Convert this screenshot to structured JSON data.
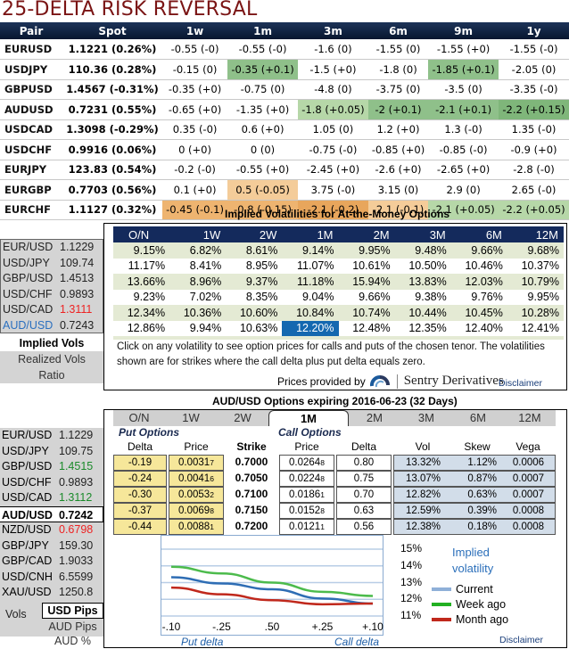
{
  "risk_reversal": {
    "title": "25-DELTA RISK REVERSAL",
    "headers": [
      "Pair",
      "Spot",
      "1w",
      "1m",
      "3m",
      "6m",
      "9m",
      "1y"
    ],
    "rows": [
      {
        "pair": "EURUSD",
        "spot": "1.1221 (0.26%)",
        "cells": [
          "-0.55 (-0)",
          "-0.55 (-0)",
          "-1.6 (0)",
          "-1.55 (0)",
          "-1.55 (+0)",
          "-1.55 (-0)"
        ],
        "shade": [
          "",
          "",
          "",
          "",
          "",
          ""
        ]
      },
      {
        "pair": "USDJPY",
        "spot": "110.36 (0.28%)",
        "cells": [
          "-0.15 (0)",
          "-0.35 (+0.1)",
          "-1.5 (+0)",
          "-1.8 (0)",
          "-1.85 (+0.1)",
          "-2.05 (0)"
        ],
        "shade": [
          "",
          "g2",
          "",
          "",
          "g2",
          ""
        ]
      },
      {
        "pair": "GBPUSD",
        "spot": "1.4567 (-0.31%)",
        "cells": [
          "-0.35 (+0)",
          "-0.75 (0)",
          "-4.8 (0)",
          "-3.75 (0)",
          "-3.5 (0)",
          "-3.35 (-0)"
        ],
        "shade": [
          "",
          "",
          "",
          "",
          "",
          ""
        ]
      },
      {
        "pair": "AUDUSD",
        "spot": "0.7231 (0.55%)",
        "cells": [
          "-0.65 (+0)",
          "-1.35 (+0)",
          "-1.8 (+0.05)",
          "-2 (+0.1)",
          "-2.1 (+0.1)",
          "-2.2 (+0.15)"
        ],
        "shade": [
          "",
          "",
          "g1",
          "g2",
          "g2",
          "g3"
        ]
      },
      {
        "pair": "USDCAD",
        "spot": "1.3098 (-0.29%)",
        "cells": [
          "0.35 (-0)",
          "0.6 (+0)",
          "1.05 (0)",
          "1.2 (+0)",
          "1.3 (-0)",
          "1.35 (-0)"
        ],
        "shade": [
          "",
          "",
          "",
          "",
          "",
          ""
        ]
      },
      {
        "pair": "USDCHF",
        "spot": "0.9916 (0.06%)",
        "cells": [
          "0 (+0)",
          "0 (0)",
          "-0.75 (-0)",
          "-0.85 (+0)",
          "-0.85 (-0)",
          "-0.9 (+0)"
        ],
        "shade": [
          "",
          "",
          "",
          "",
          "",
          ""
        ]
      },
      {
        "pair": "EURJPY",
        "spot": "123.83 (0.54%)",
        "cells": [
          "-0.2 (-0)",
          "-0.55 (+0)",
          "-2.45 (+0)",
          "-2.6 (+0)",
          "-2.65 (+0)",
          "-2.8 (-0)"
        ],
        "shade": [
          "",
          "",
          "",
          "",
          "",
          ""
        ]
      },
      {
        "pair": "EURGBP",
        "spot": "0.7703 (0.56%)",
        "cells": [
          "0.1 (+0)",
          "0.5 (-0.05)",
          "3.75 (-0)",
          "3.15 (0)",
          "2.9 (0)",
          "2.65 (-0)"
        ],
        "shade": [
          "",
          "o1",
          "",
          "",
          "",
          ""
        ]
      },
      {
        "pair": "EURCHF",
        "spot": "1.1127 (0.32%)",
        "cells": [
          "-0.45 (-0.1)",
          "-0.8 (-0.15)",
          "-2.1 (-0.2)",
          "-2.1 (-0.1)",
          "-2.1 (+0.05)",
          "-2.2 (+0.05)"
        ],
        "shade": [
          "o2",
          "o2",
          "o3",
          "o1",
          "g1",
          "g1"
        ]
      }
    ]
  },
  "implied_vols": {
    "title": "Implied Volatilities for At-the-Money Options",
    "side_rates": [
      {
        "pair": "EUR/USD",
        "value": "1.1229",
        "pair_color": "#222222",
        "value_color": "#222222"
      },
      {
        "pair": "USD/JPY",
        "value": "109.74",
        "pair_color": "#222222",
        "value_color": "#222222"
      },
      {
        "pair": "GBP/USD",
        "value": "1.4513",
        "pair_color": "#222222",
        "value_color": "#222222"
      },
      {
        "pair": "USD/CHF",
        "value": "0.9893",
        "pair_color": "#222222",
        "value_color": "#222222"
      },
      {
        "pair": "USD/CAD",
        "value": "1.3111",
        "pair_color": "#222222",
        "value_color": "#ee2222"
      },
      {
        "pair": "AUD/USD",
        "value": "0.7243",
        "pair_color": "#2a6fbf",
        "value_color": "#222222"
      }
    ],
    "view_options": [
      "Implied Vols",
      "Realized Vols",
      "Ratio"
    ],
    "selected_view": "Implied Vols",
    "headers": [
      "O/N",
      "1W",
      "2W",
      "1M",
      "2M",
      "3M",
      "6M",
      "12M"
    ],
    "rows": [
      [
        "9.15%",
        "6.82%",
        "8.61%",
        "9.14%",
        "9.95%",
        "9.48%",
        "9.66%",
        "9.68%"
      ],
      [
        "11.17%",
        "8.41%",
        "8.95%",
        "11.07%",
        "10.61%",
        "10.50%",
        "10.46%",
        "10.37%"
      ],
      [
        "13.66%",
        "8.96%",
        "9.37%",
        "11.18%",
        "15.94%",
        "13.83%",
        "12.03%",
        "10.79%"
      ],
      [
        "9.23%",
        "7.02%",
        "8.35%",
        "9.04%",
        "9.66%",
        "9.38%",
        "9.76%",
        "9.95%"
      ],
      [
        "12.34%",
        "10.36%",
        "10.60%",
        "10.84%",
        "10.74%",
        "10.44%",
        "10.45%",
        "10.28%"
      ],
      [
        "12.86%",
        "9.94%",
        "10.63%",
        "12.20%",
        "12.48%",
        "12.35%",
        "12.40%",
        "12.41%"
      ]
    ],
    "selected_cell": {
      "row": 5,
      "col": 3
    },
    "note": "Click on any volatility to see option prices for calls and puts of the chosen tenor. The volatilities shown are for strikes where the call delta plus put delta equals zero.",
    "provided_by": "Prices provided by",
    "provider_name": "Sentry Derivatives",
    "disclaimer": "Disclaimer"
  },
  "options": {
    "title": "AUD/USD Options expiring 2016-06-23 (32 Days)",
    "side_rates": [
      {
        "pair": "EUR/USD",
        "value": "1.1229",
        "value_color": "#222222"
      },
      {
        "pair": "USD/JPY",
        "value": "109.75",
        "value_color": "#222222"
      },
      {
        "pair": "GBP/USD",
        "value": "1.4515",
        "value_color": "#1a8a2a"
      },
      {
        "pair": "USD/CHF",
        "value": "0.9893",
        "value_color": "#222222"
      },
      {
        "pair": "USD/CAD",
        "value": "1.3112",
        "value_color": "#1a8a2a"
      }
    ],
    "selected_pair": {
      "pair": "AUD/USD",
      "value": "0.7242"
    },
    "side_rates_2": [
      {
        "pair": "NZD/USD",
        "value": "0.6798",
        "value_color": "#ee2222"
      },
      {
        "pair": "GBP/JPY",
        "value": "159.30",
        "value_color": "#222222"
      },
      {
        "pair": "GBP/CAD",
        "value": "1.9033",
        "value_color": "#222222"
      },
      {
        "pair": "USD/CNH",
        "value": "6.5599",
        "value_color": "#222222"
      },
      {
        "pair": "XAU/USD",
        "value": "1250.8",
        "value_color": "#222222"
      }
    ],
    "units_selected": "USD Pips",
    "units_label": "Vols",
    "units_options": [
      "AUD Pips",
      "AUD %"
    ],
    "tabs": [
      "O/N",
      "1W",
      "2W",
      "1M",
      "2M",
      "3M",
      "6M",
      "12M"
    ],
    "active_tab": "1M",
    "put_label": "Put Options",
    "call_label": "Call Options",
    "columns": {
      "put_delta": "Delta",
      "put_price": "Price",
      "strike": "Strike",
      "call_price": "Price",
      "call_delta": "Delta",
      "vol": "Vol",
      "skew": "Skew",
      "vega": "Vega"
    },
    "rows": [
      {
        "put_delta": "-0.19",
        "put_price": "0.0031",
        "put_price_pip": "7",
        "strike": "0.7000",
        "call_price": "0.0264",
        "call_price_pip": "8",
        "call_delta": "0.80",
        "vol": "13.32%",
        "skew": "1.12%",
        "vega": "0.0006"
      },
      {
        "put_delta": "-0.24",
        "put_price": "0.0041",
        "put_price_pip": "6",
        "strike": "0.7050",
        "call_price": "0.0224",
        "call_price_pip": "8",
        "call_delta": "0.75",
        "vol": "13.07%",
        "skew": "0.87%",
        "vega": "0.0007"
      },
      {
        "put_delta": "-0.30",
        "put_price": "0.0053",
        "put_price_pip": "2",
        "strike": "0.7100",
        "call_price": "0.0186",
        "call_price_pip": "1",
        "call_delta": "0.70",
        "vol": "12.82%",
        "skew": "0.63%",
        "vega": "0.0007"
      },
      {
        "put_delta": "-0.37",
        "put_price": "0.0069",
        "put_price_pip": "8",
        "strike": "0.7150",
        "call_price": "0.0152",
        "call_price_pip": "8",
        "call_delta": "0.63",
        "vol": "12.59%",
        "skew": "0.39%",
        "vega": "0.0008"
      },
      {
        "put_delta": "-0.44",
        "put_price": "0.0088",
        "put_price_pip": "1",
        "strike": "0.7200",
        "call_price": "0.0121",
        "call_price_pip": "1",
        "call_delta": "0.56",
        "vol": "12.38%",
        "skew": "0.18%",
        "vega": "0.0008"
      }
    ],
    "disclaimer": "Disclaimer"
  },
  "chart_data": {
    "type": "line",
    "title": "Implied volatility",
    "x": [
      "-.10",
      "-.25",
      ".50",
      "+.25",
      "+.10"
    ],
    "xlabel_left": "Put delta",
    "xlabel_right": "Call delta",
    "yticks": [
      "15%",
      "14%",
      "13%",
      "12%",
      "11%"
    ],
    "ylim": [
      11,
      15
    ],
    "grid": true,
    "legend_position": "right",
    "series": [
      {
        "name": "Current",
        "color": "#2e6db4",
        "legend_color": "#8fb0d8",
        "values": [
          13.32,
          12.95,
          12.6,
          12.05,
          11.75
        ]
      },
      {
        "name": "Week ago",
        "color": "#4cbb4c",
        "legend_color": "#22b022",
        "values": [
          13.95,
          13.55,
          13.0,
          12.45,
          12.2
        ]
      },
      {
        "name": "Month ago",
        "color": "#c0281c",
        "legend_color": "#c0281c",
        "values": [
          12.7,
          12.3,
          11.95,
          11.7,
          11.75
        ]
      }
    ]
  }
}
